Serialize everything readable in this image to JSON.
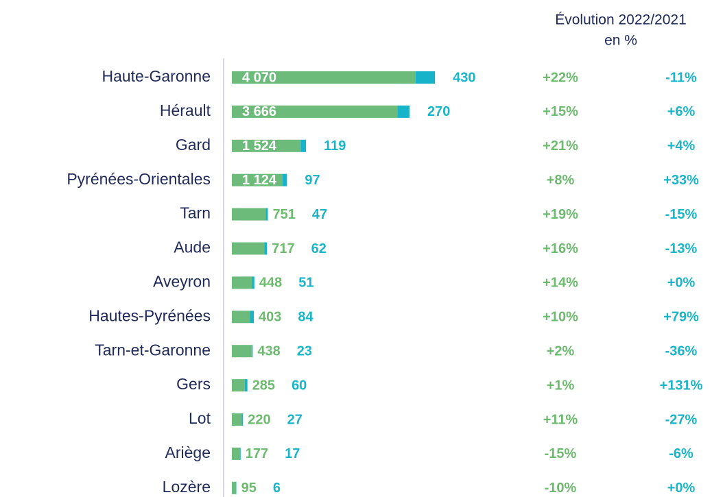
{
  "chart_data": {
    "type": "bar",
    "orientation": "horizontal",
    "stacked": true,
    "header": [
      "Évolution 2022/2021",
      "en %"
    ],
    "categories": [
      "Haute-Garonne",
      "Hérault",
      "Gard",
      "Pyrénées-Orientales",
      "Tarn",
      "Aude",
      "Aveyron",
      "Hautes-Pyrénées",
      "Tarn-et-Garonne",
      "Gers",
      "Lot",
      "Ariège",
      "Lozère"
    ],
    "series": [
      {
        "color": "#6cbb7a",
        "label_color": "#6dbb6f",
        "values": [
          4070,
          3666,
          1524,
          1124,
          751,
          717,
          448,
          403,
          438,
          285,
          220,
          177,
          95
        ],
        "value_labels": [
          "4 070",
          "3 666",
          "1 524",
          "1 124",
          "751",
          "717",
          "448",
          "403",
          "438",
          "285",
          "220",
          "177",
          "95"
        ]
      },
      {
        "color": "#17b3c9",
        "label_color": "#1ab5c8",
        "values": [
          430,
          270,
          119,
          97,
          47,
          62,
          51,
          84,
          23,
          60,
          27,
          17,
          6
        ]
      }
    ],
    "columns": [
      {
        "color": "#6dbb6f",
        "values": [
          22,
          15,
          21,
          8,
          19,
          16,
          14,
          10,
          2,
          1,
          11,
          -15,
          -10
        ],
        "value_labels": [
          "+22%",
          "+15%",
          "+21%",
          "+8%",
          "+19%",
          "+16%",
          "+14%",
          "+10%",
          "+2%",
          "+1%",
          "+11%",
          "-15%",
          "-10%"
        ]
      },
      {
        "color": "#1ab5c8",
        "values": [
          -11,
          6,
          4,
          33,
          -15,
          -13,
          0,
          79,
          -36,
          131,
          -27,
          -6,
          0
        ],
        "value_labels": [
          "-11%",
          "+6%",
          "+4%",
          "+33%",
          "-15%",
          "-13%",
          "+0%",
          "+79%",
          "-36%",
          "+131%",
          "-27%",
          "-6%",
          "+0%"
        ]
      }
    ],
    "xlim": [
      0,
      5000
    ]
  }
}
